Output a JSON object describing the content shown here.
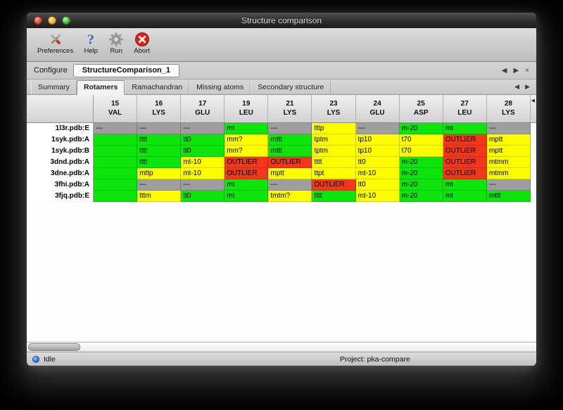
{
  "window": {
    "title": "Structure comparison"
  },
  "toolbar": {
    "buttons": [
      {
        "name": "preferences",
        "label": "Preferences",
        "icon": "tools-icon"
      },
      {
        "name": "help",
        "label": "Help",
        "icon": "question-icon"
      },
      {
        "name": "run",
        "label": "Run",
        "icon": "gear-icon"
      },
      {
        "name": "abort",
        "label": "Abort",
        "icon": "abort-icon"
      }
    ]
  },
  "configure_bar": {
    "label": "Configure",
    "active_config": "StructureComparison_1",
    "nav_prev": "◀",
    "nav_next": "▶",
    "close": "×"
  },
  "tab_bar": {
    "tabs": [
      {
        "label": "Summary",
        "active": false
      },
      {
        "label": "Rotamers",
        "active": true
      },
      {
        "label": "Ramachandran",
        "active": false
      },
      {
        "label": "Missing atoms",
        "active": false
      },
      {
        "label": "Secondary structure",
        "active": false
      }
    ],
    "nav_prev": "◀",
    "nav_next": "▶"
  },
  "table": {
    "header_scroll": "◀",
    "columns": [
      {
        "number": "15",
        "residue": "VAL"
      },
      {
        "number": "16",
        "residue": "LYS"
      },
      {
        "number": "17",
        "residue": "GLU"
      },
      {
        "number": "19",
        "residue": "LEU"
      },
      {
        "number": "21",
        "residue": "LYS"
      },
      {
        "number": "23",
        "residue": "LYS"
      },
      {
        "number": "24",
        "residue": "GLU"
      },
      {
        "number": "25",
        "residue": "ASP"
      },
      {
        "number": "27",
        "residue": "LEU"
      },
      {
        "number": "28",
        "residue": "LYS"
      }
    ],
    "rows": [
      {
        "label": "1l3r.pdb:E",
        "cells": [
          {
            "text": "---",
            "status": "missing"
          },
          {
            "text": "---",
            "status": "missing"
          },
          {
            "text": "---",
            "status": "missing"
          },
          {
            "text": "mt",
            "status": "favored"
          },
          {
            "text": "---",
            "status": "missing"
          },
          {
            "text": "tttp",
            "status": "allowed"
          },
          {
            "text": "---",
            "status": "missing"
          },
          {
            "text": "m-20",
            "status": "favored"
          },
          {
            "text": "mt",
            "status": "favored"
          },
          {
            "text": "---",
            "status": "missing"
          }
        ]
      },
      {
        "label": "1syk.pdb:A",
        "cells": [
          {
            "text": "",
            "status": "favored"
          },
          {
            "text": "tttt",
            "status": "favored"
          },
          {
            "text": "tt0",
            "status": "favored"
          },
          {
            "text": "mm?",
            "status": "allowed"
          },
          {
            "text": "mttt",
            "status": "favored"
          },
          {
            "text": "tptm",
            "status": "allowed"
          },
          {
            "text": "tp10",
            "status": "allowed"
          },
          {
            "text": "t70",
            "status": "allowed"
          },
          {
            "text": "OUTLIER",
            "status": "outlier"
          },
          {
            "text": "mptt",
            "status": "allowed"
          }
        ]
      },
      {
        "label": "1syk.pdb:B",
        "cells": [
          {
            "text": "",
            "status": "favored"
          },
          {
            "text": "tttt",
            "status": "favored"
          },
          {
            "text": "tt0",
            "status": "favored"
          },
          {
            "text": "mm?",
            "status": "allowed"
          },
          {
            "text": "mttt",
            "status": "favored"
          },
          {
            "text": "tptm",
            "status": "allowed"
          },
          {
            "text": "tp10",
            "status": "allowed"
          },
          {
            "text": "t70",
            "status": "allowed"
          },
          {
            "text": "OUTLIER",
            "status": "outlier"
          },
          {
            "text": "mptt",
            "status": "allowed"
          }
        ]
      },
      {
        "label": "3dnd.pdb:A",
        "cells": [
          {
            "text": "",
            "status": "favored"
          },
          {
            "text": "tttt",
            "status": "favored"
          },
          {
            "text": "mt-10",
            "status": "allowed"
          },
          {
            "text": "OUTLIER",
            "status": "outlier"
          },
          {
            "text": "OUTLIER",
            "status": "outlier"
          },
          {
            "text": "tttt",
            "status": "allowed"
          },
          {
            "text": "tt0",
            "status": "allowed"
          },
          {
            "text": "m-20",
            "status": "favored"
          },
          {
            "text": "OUTLIER",
            "status": "outlier"
          },
          {
            "text": "mtmm",
            "status": "allowed"
          }
        ]
      },
      {
        "label": "3dne.pdb:A",
        "cells": [
          {
            "text": "",
            "status": "favored"
          },
          {
            "text": "mttp",
            "status": "allowed"
          },
          {
            "text": "mt-10",
            "status": "allowed"
          },
          {
            "text": "OUTLIER",
            "status": "outlier"
          },
          {
            "text": "mptt",
            "status": "allowed"
          },
          {
            "text": "ttpt",
            "status": "allowed"
          },
          {
            "text": "mt-10",
            "status": "allowed"
          },
          {
            "text": "m-20",
            "status": "favored"
          },
          {
            "text": "OUTLIER",
            "status": "outlier"
          },
          {
            "text": "mtmm",
            "status": "allowed"
          }
        ]
      },
      {
        "label": "3fhi.pdb:A",
        "cells": [
          {
            "text": "",
            "status": "favored"
          },
          {
            "text": "---",
            "status": "missing"
          },
          {
            "text": "---",
            "status": "missing"
          },
          {
            "text": "mt",
            "status": "favored"
          },
          {
            "text": "---",
            "status": "missing"
          },
          {
            "text": "OUTLIER",
            "status": "outlier"
          },
          {
            "text": "tt0",
            "status": "allowed"
          },
          {
            "text": "m-20",
            "status": "favored"
          },
          {
            "text": "mt",
            "status": "favored"
          },
          {
            "text": "---",
            "status": "missing"
          }
        ]
      },
      {
        "label": "3fjq.pdb:E",
        "cells": [
          {
            "text": "",
            "status": "favored"
          },
          {
            "text": "tttm",
            "status": "allowed"
          },
          {
            "text": "tt0",
            "status": "favored"
          },
          {
            "text": "mt",
            "status": "favored"
          },
          {
            "text": "tmtm?",
            "status": "allowed"
          },
          {
            "text": "tttt",
            "status": "favored"
          },
          {
            "text": "mt-10",
            "status": "allowed"
          },
          {
            "text": "m-20",
            "status": "favored"
          },
          {
            "text": "mt",
            "status": "favored"
          },
          {
            "text": "mttt",
            "status": "favored"
          }
        ]
      }
    ]
  },
  "status_bar": {
    "status": "Idle",
    "project": "Project: pka-compare"
  },
  "colors": {
    "favored": "#0ce40c",
    "allowed": "#fdfd00",
    "outlier": "#f4361d",
    "missing": "#9e9e9e"
  }
}
